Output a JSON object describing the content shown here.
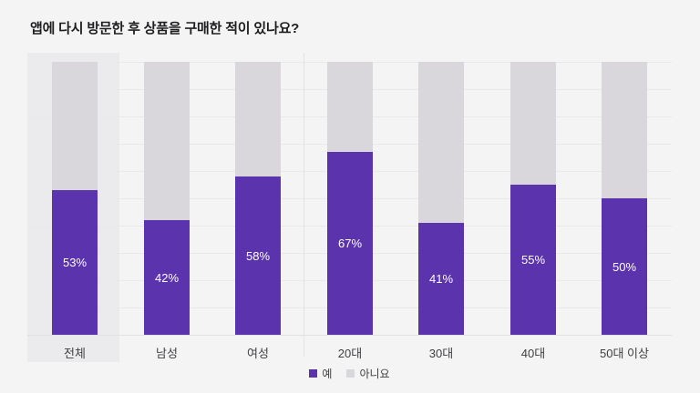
{
  "page": {
    "background_color": "#F4F4F5",
    "highlight_color": "#EBEBED"
  },
  "chart_data": {
    "type": "bar",
    "stacked": true,
    "orientation": "vertical",
    "unit": "%",
    "title": "앱에 다시 방문한 후 상품을 구매한 적이 있나요?",
    "categories": [
      "전체",
      "남성",
      "여성",
      "20대",
      "30대",
      "40대",
      "50대 이상"
    ],
    "series": [
      {
        "name": "예",
        "color": "#5B33AD",
        "values": [
          53,
          42,
          58,
          67,
          41,
          55,
          50
        ]
      },
      {
        "name": "아니요",
        "color": "#D9D6DC",
        "values": [
          47,
          58,
          42,
          33,
          59,
          45,
          50
        ]
      }
    ],
    "value_labels": [
      "53%",
      "42%",
      "58%",
      "67%",
      "41%",
      "55%",
      "50%"
    ],
    "ylim": [
      0,
      100
    ],
    "grid": "horizontal gridlines every 10%, no axis tick labels",
    "legend": {
      "position": "bottom-center",
      "entries": [
        "예",
        "아니요"
      ]
    },
    "highlighted_category": "전체",
    "group_divider_after_category": "여성"
  }
}
